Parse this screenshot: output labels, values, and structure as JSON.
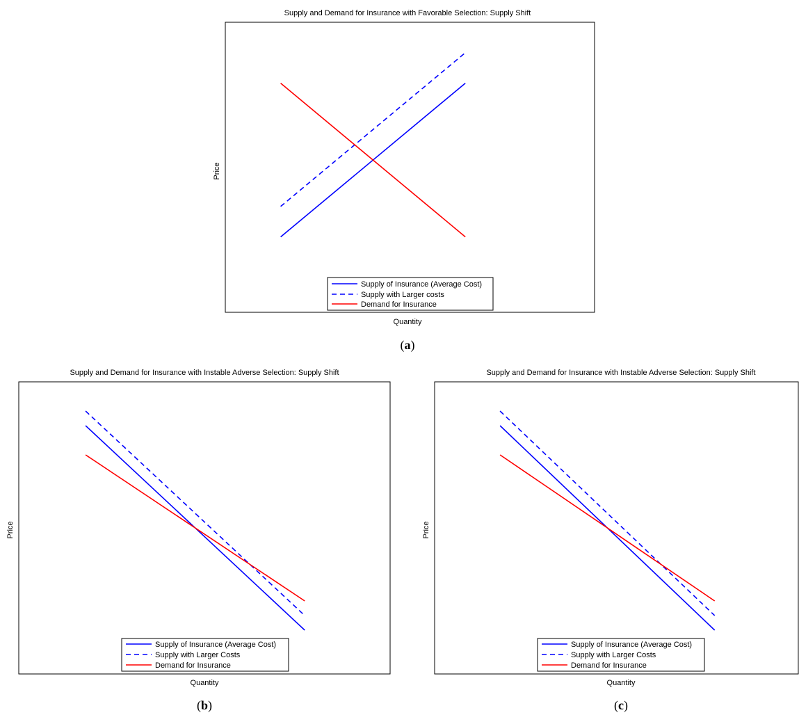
{
  "chart_data": [
    {
      "type": "line",
      "panel": "a",
      "caption_letter": "a",
      "title": "Supply and Demand for Insurance with Favorable Selection: Supply Shift",
      "xlabel": "Quantity",
      "ylabel": "Price",
      "xlim": [
        0,
        10
      ],
      "ylim": [
        0,
        10
      ],
      "grid": false,
      "legend_position": "bottom-center",
      "series": [
        {
          "name": "Supply of Insurance (Average Cost)",
          "color": "#0000ff",
          "dash": "solid",
          "x": [
            3,
            13
          ],
          "y": [
            2.6,
            7.9
          ]
        },
        {
          "name": "Supply with Larger costs",
          "color": "#0000ff",
          "dash": "dashed",
          "x": [
            3,
            13
          ],
          "y": [
            3.65,
            8.95
          ]
        },
        {
          "name": "Demand for Insurance",
          "color": "#ff0000",
          "dash": "solid",
          "x": [
            3,
            13
          ],
          "y": [
            7.9,
            2.6
          ]
        }
      ]
    },
    {
      "type": "line",
      "panel": "b",
      "caption_letter": "b",
      "title": "Supply and Demand for Insurance with Instable Adverse Selection: Supply Shift",
      "xlabel": "Quantity",
      "ylabel": "Price",
      "xlim": [
        0,
        10
      ],
      "ylim": [
        0,
        10
      ],
      "grid": false,
      "legend_position": "bottom-center",
      "series": [
        {
          "name": "Supply of Insurance (Average Cost)",
          "color": "#0000ff",
          "dash": "solid",
          "x": [
            1.8,
            7.7
          ],
          "y": [
            8.5,
            1.5
          ]
        },
        {
          "name": "Supply with Larger Costs",
          "color": "#0000ff",
          "dash": "dashed",
          "x": [
            1.8,
            7.7
          ],
          "y": [
            9.0,
            2.0
          ]
        },
        {
          "name": "Demand for Insurance",
          "color": "#ff0000",
          "dash": "solid",
          "x": [
            1.8,
            7.7
          ],
          "y": [
            7.5,
            2.5
          ]
        }
      ]
    },
    {
      "type": "line",
      "panel": "c",
      "caption_letter": "c",
      "title": "Supply and Demand for Insurance with Instable Adverse Selection: Supply Shift",
      "xlabel": "Quantity",
      "ylabel": "Price",
      "xlim": [
        0,
        10
      ],
      "ylim": [
        0,
        10
      ],
      "grid": false,
      "legend_position": "bottom-center",
      "series": [
        {
          "name": "Supply of Insurance (Average Cost)",
          "color": "#0000ff",
          "dash": "solid",
          "x": [
            1.8,
            7.7
          ],
          "y": [
            8.5,
            1.5
          ]
        },
        {
          "name": "Supply with Larger Costs",
          "color": "#0000ff",
          "dash": "dashed",
          "x": [
            1.8,
            7.7
          ],
          "y": [
            9.0,
            2.0
          ]
        },
        {
          "name": "Demand for Insurance",
          "color": "#ff0000",
          "dash": "solid",
          "x": [
            1.8,
            7.7
          ],
          "y": [
            7.5,
            2.5
          ]
        }
      ]
    }
  ]
}
